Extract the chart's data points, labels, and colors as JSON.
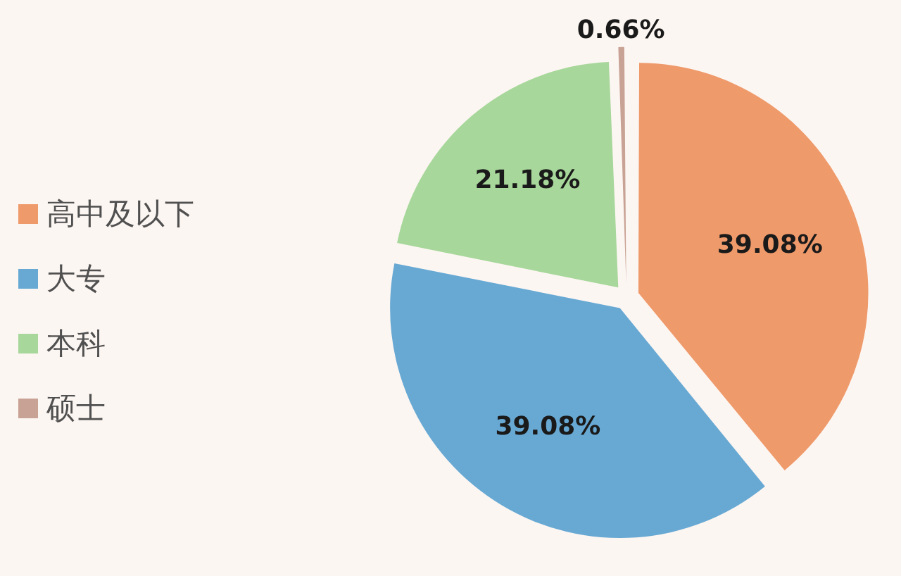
{
  "chart_data": {
    "type": "pie",
    "categories": [
      "高中及以下",
      "大专",
      "本科",
      "硕士"
    ],
    "values": [
      39.08,
      39.08,
      21.18,
      0.66
    ],
    "colors": [
      "#ef9a6b",
      "#68a9d4",
      "#a7d79a",
      "#c8a294"
    ],
    "value_labels": [
      "39.08%",
      "39.08%",
      "21.18%",
      "0.66%"
    ],
    "legend": "left"
  }
}
